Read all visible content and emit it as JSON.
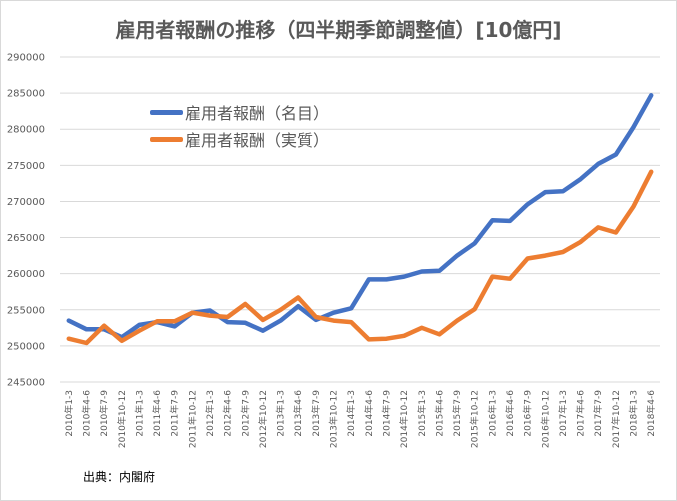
{
  "chart_data": {
    "type": "line",
    "title": "雇用者報酬の推移（四半期季節調整値）[10億円]",
    "xlabel": "",
    "ylabel": "",
    "ylim": [
      245000,
      290000
    ],
    "yticks": [
      245000,
      250000,
      255000,
      260000,
      265000,
      270000,
      275000,
      280000,
      285000,
      290000
    ],
    "grid": true,
    "legend_position": "upper-left",
    "categories": [
      "2010年1-3",
      "2010年4-6",
      "2010年7-9",
      "2010年10-12",
      "2011年1-3",
      "2011年4-6",
      "2011年7-9",
      "2011年10-12",
      "2012年1-3",
      "2012年4-6",
      "2012年7-9",
      "2012年10-12",
      "2013年1-3",
      "2013年4-6",
      "2013年7-9",
      "2013年10-12",
      "2014年1-3",
      "2014年4-6",
      "2014年7-9",
      "2014年10-12",
      "2015年1-3",
      "2015年4-6",
      "2015年7-9",
      "2015年10-12",
      "2016年1-3",
      "2016年4-6",
      "2016年7-9",
      "2016年10-12",
      "2017年1-3",
      "2017年4-6",
      "2017年7-9",
      "2017年10-12",
      "2018年1-3",
      "2018年4-6"
    ],
    "series": [
      {
        "name": "雇用者報酬（名目）",
        "color": "#4472c4",
        "values": [
          253500,
          252300,
          252300,
          251200,
          252900,
          253300,
          252700,
          254600,
          254900,
          253300,
          253200,
          252100,
          253500,
          255500,
          253600,
          254600,
          255200,
          259200,
          259200,
          259600,
          260300,
          260400,
          262500,
          264200,
          267400,
          267300,
          269600,
          271300,
          271400,
          273100,
          275200,
          276500,
          280300,
          284700
        ]
      },
      {
        "name": "雇用者報酬（実質）",
        "color": "#ed7d31",
        "values": [
          251000,
          250400,
          252800,
          250700,
          252100,
          253400,
          253400,
          254600,
          254200,
          254000,
          255800,
          253600,
          255000,
          256700,
          254000,
          253500,
          253300,
          250900,
          251000,
          251400,
          252500,
          251600,
          253500,
          255100,
          259600,
          259300,
          262100,
          262500,
          263000,
          264400,
          266400,
          265700,
          269300,
          274100
        ]
      }
    ],
    "source_text": "出典：内閣府"
  }
}
